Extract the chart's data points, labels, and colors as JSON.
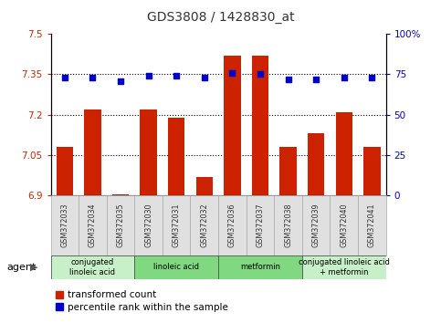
{
  "title": "GDS3808 / 1428830_at",
  "samples": [
    "GSM372033",
    "GSM372034",
    "GSM372035",
    "GSM372030",
    "GSM372031",
    "GSM372032",
    "GSM372036",
    "GSM372037",
    "GSM372038",
    "GSM372039",
    "GSM372040",
    "GSM372041"
  ],
  "red_values": [
    7.08,
    7.22,
    6.905,
    7.22,
    7.19,
    6.97,
    7.42,
    7.42,
    7.08,
    7.13,
    7.21,
    7.08
  ],
  "blue_values": [
    73,
    73,
    71,
    74,
    74,
    73,
    76,
    75,
    72,
    72,
    73,
    73
  ],
  "ylim_left": [
    6.9,
    7.5
  ],
  "ylim_right": [
    0,
    100
  ],
  "yticks_left": [
    6.9,
    7.05,
    7.2,
    7.35,
    7.5
  ],
  "yticks_right": [
    0,
    25,
    50,
    75,
    100
  ],
  "ytick_labels_left": [
    "6.9",
    "7.05",
    "7.2",
    "7.35",
    "7.5"
  ],
  "ytick_labels_right": [
    "0",
    "25",
    "50",
    "75",
    "100%"
  ],
  "hlines": [
    7.05,
    7.2,
    7.35
  ],
  "ybase": 6.9,
  "groups": [
    {
      "label": "conjugated\nlinoleic acid",
      "start": 0,
      "end": 3,
      "color": "#c8f0c8"
    },
    {
      "label": "linoleic acid",
      "start": 3,
      "end": 6,
      "color": "#80d880"
    },
    {
      "label": "metformin",
      "start": 6,
      "end": 9,
      "color": "#80d880"
    },
    {
      "label": "conjugated linoleic acid\n+ metformin",
      "start": 9,
      "end": 12,
      "color": "#c8f0c8"
    }
  ],
  "bar_color": "#cc2200",
  "dot_color": "#0000cc",
  "title_color": "#333333",
  "background_color": "#ffffff",
  "legend_red_label": "transformed count",
  "legend_blue_label": "percentile rank within the sample",
  "agent_label": "agent"
}
